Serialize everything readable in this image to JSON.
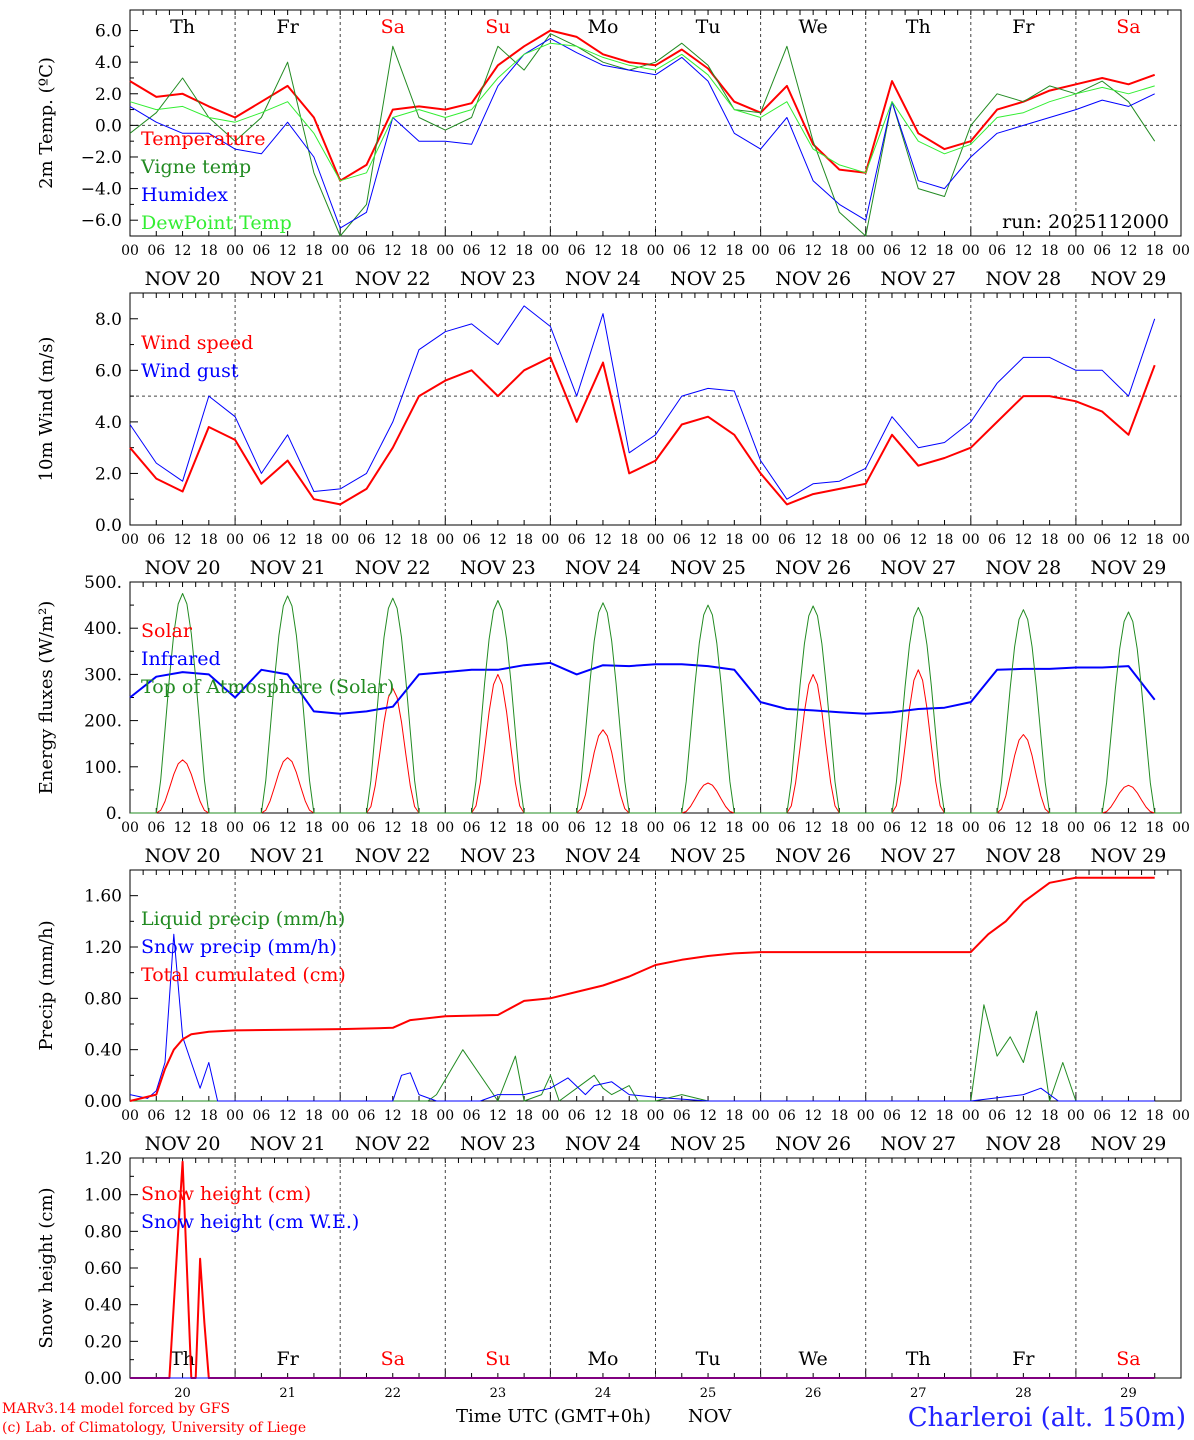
{
  "run_label": "run: 2025112000",
  "days": [
    {
      "abbr": "Th",
      "date_label": "NOV 20",
      "day": "20",
      "weekend": false
    },
    {
      "abbr": "Fr",
      "date_label": "NOV 21",
      "day": "21",
      "weekend": false
    },
    {
      "abbr": "Sa",
      "date_label": "NOV 22",
      "day": "22",
      "weekend": true
    },
    {
      "abbr": "Su",
      "date_label": "NOV 23",
      "day": "23",
      "weekend": true
    },
    {
      "abbr": "Mo",
      "date_label": "NOV 24",
      "day": "24",
      "weekend": false
    },
    {
      "abbr": "Tu",
      "date_label": "NOV 25",
      "day": "25",
      "weekend": false
    },
    {
      "abbr": "We",
      "date_label": "NOV 26",
      "day": "26",
      "weekend": false
    },
    {
      "abbr": "Th",
      "date_label": "NOV 27",
      "day": "27",
      "weekend": false
    },
    {
      "abbr": "Fr",
      "date_label": "NOV 28",
      "day": "28",
      "weekend": false
    },
    {
      "abbr": "Sa",
      "date_label": "NOV 29",
      "day": "29",
      "weekend": true
    }
  ],
  "hour_ticks": [
    "00",
    "06",
    "12",
    "18"
  ],
  "final_hour_tick": "00",
  "colors": {
    "weekday": "#000000",
    "weekend": "#ff0000"
  },
  "chart_data": [
    {
      "type": "line",
      "ylabel": "2m Temp. (ºC)",
      "ylim": [
        -7,
        7.3
      ],
      "yticks": [
        -6,
        -4,
        -2,
        0,
        2,
        4,
        6
      ],
      "ytick_labels": [
        "−6.0",
        "−4.0",
        "−2.0",
        "0.0",
        "2.0",
        "4.0",
        "6.0"
      ],
      "ref_line": 0,
      "x_unit": "hours since NOV 20 00 UTC",
      "series": [
        {
          "name": "Temperature",
          "color": "#ff0000",
          "width": 2,
          "x": [
            0,
            6,
            12,
            18,
            24,
            30,
            36,
            42,
            48,
            54,
            60,
            66,
            72,
            78,
            84,
            90,
            96,
            102,
            108,
            114,
            120,
            126,
            132,
            138,
            144,
            150,
            156,
            162,
            168,
            174,
            180,
            186,
            192,
            198,
            204,
            210,
            216,
            222,
            228,
            234
          ],
          "values": [
            2.8,
            1.8,
            2.0,
            1.2,
            0.5,
            1.5,
            2.5,
            0.5,
            -3.5,
            -2.5,
            1.0,
            1.2,
            1.0,
            1.4,
            3.8,
            5.0,
            6.0,
            5.6,
            4.5,
            4.0,
            3.8,
            4.8,
            3.6,
            1.5,
            0.8,
            2.5,
            -1.2,
            -2.8,
            -3.0,
            2.8,
            -0.5,
            -1.5,
            -1.0,
            1.0,
            1.5,
            2.2,
            2.6,
            3.0,
            2.6,
            3.2
          ]
        },
        {
          "name": "Vigne temp",
          "color": "#228b22",
          "width": 1,
          "x": [
            0,
            6,
            12,
            18,
            24,
            30,
            36,
            42,
            48,
            54,
            60,
            66,
            72,
            78,
            84,
            90,
            96,
            102,
            108,
            114,
            120,
            126,
            132,
            138,
            144,
            150,
            156,
            162,
            168,
            174,
            180,
            186,
            192,
            198,
            204,
            210,
            216,
            222,
            228,
            234
          ],
          "values": [
            -0.5,
            0.8,
            3.0,
            0.5,
            -1.0,
            0.5,
            4.0,
            -3.0,
            -7.0,
            -5.0,
            5.0,
            0.5,
            -0.3,
            0.5,
            5.0,
            3.5,
            5.8,
            5.0,
            4.0,
            3.5,
            4.0,
            5.2,
            3.8,
            1.0,
            0.8,
            5.0,
            -1.0,
            -5.5,
            -7.0,
            1.5,
            -4.0,
            -4.5,
            0.0,
            2.0,
            1.5,
            2.5,
            2.0,
            2.8,
            1.5,
            -1.0
          ]
        },
        {
          "name": "Humidex",
          "color": "#0000ff",
          "width": 1,
          "x": [
            0,
            6,
            12,
            18,
            24,
            30,
            36,
            42,
            48,
            54,
            60,
            66,
            72,
            78,
            84,
            90,
            96,
            102,
            108,
            114,
            120,
            126,
            132,
            138,
            144,
            150,
            156,
            162,
            168,
            174,
            180,
            186,
            192,
            198,
            204,
            210,
            216,
            222,
            228,
            234
          ],
          "values": [
            1.2,
            0.2,
            -0.5,
            -0.5,
            -1.5,
            -1.8,
            0.2,
            -2.0,
            -6.5,
            -5.5,
            0.5,
            -1.0,
            -1.0,
            -1.2,
            2.5,
            4.5,
            5.5,
            4.6,
            3.8,
            3.5,
            3.2,
            4.3,
            2.8,
            -0.5,
            -1.5,
            0.5,
            -3.5,
            -5.0,
            -6.0,
            1.5,
            -3.5,
            -4.0,
            -2.0,
            -0.5,
            0.0,
            0.5,
            1.0,
            1.6,
            1.2,
            2.0
          ]
        },
        {
          "name": "DewPoint Temp",
          "color": "#33ee33",
          "width": 1,
          "x": [
            0,
            6,
            12,
            18,
            24,
            30,
            36,
            42,
            48,
            54,
            60,
            66,
            72,
            78,
            84,
            90,
            96,
            102,
            108,
            114,
            120,
            126,
            132,
            138,
            144,
            150,
            156,
            162,
            168,
            174,
            180,
            186,
            192,
            198,
            204,
            210,
            216,
            222,
            228,
            234
          ],
          "values": [
            1.5,
            1.0,
            1.2,
            0.5,
            0.2,
            0.8,
            1.5,
            -0.5,
            -3.5,
            -3.0,
            0.5,
            1.0,
            0.5,
            1.0,
            3.0,
            4.5,
            5.2,
            5.0,
            4.3,
            3.8,
            3.5,
            4.5,
            3.2,
            1.0,
            0.5,
            1.5,
            -1.5,
            -2.5,
            -3.0,
            1.5,
            -1.0,
            -1.8,
            -1.2,
            0.5,
            0.8,
            1.5,
            2.0,
            2.4,
            2.0,
            2.5
          ]
        }
      ]
    },
    {
      "type": "line",
      "ylabel": "10m Wind (m/s)",
      "ylim": [
        0,
        9
      ],
      "yticks": [
        0,
        2,
        4,
        6,
        8
      ],
      "ytick_labels": [
        "0.0",
        "2.0",
        "4.0",
        "6.0",
        "8.0"
      ],
      "ref_line": 5,
      "x_unit": "hours since NOV 20 00 UTC",
      "series": [
        {
          "name": "Wind speed",
          "color": "#ff0000",
          "width": 2,
          "x": [
            0,
            6,
            12,
            18,
            24,
            30,
            36,
            42,
            48,
            54,
            60,
            66,
            72,
            78,
            84,
            90,
            96,
            102,
            108,
            114,
            120,
            126,
            132,
            138,
            144,
            150,
            156,
            162,
            168,
            174,
            180,
            186,
            192,
            198,
            204,
            210,
            216,
            222,
            228,
            234
          ],
          "values": [
            3.0,
            1.8,
            1.3,
            3.8,
            3.3,
            1.6,
            2.5,
            1.0,
            0.8,
            1.4,
            3.0,
            5.0,
            5.6,
            6.0,
            5.0,
            6.0,
            6.5,
            4.0,
            6.3,
            2.0,
            2.5,
            3.9,
            4.2,
            3.5,
            2.0,
            0.8,
            1.2,
            1.4,
            1.6,
            3.5,
            2.3,
            2.6,
            3.0,
            4.0,
            5.0,
            5.0,
            4.8,
            4.4,
            3.5,
            6.2
          ]
        },
        {
          "name": "Wind gust",
          "color": "#0000ff",
          "width": 1,
          "x": [
            0,
            6,
            12,
            18,
            24,
            30,
            36,
            42,
            48,
            54,
            60,
            66,
            72,
            78,
            84,
            90,
            96,
            102,
            108,
            114,
            120,
            126,
            132,
            138,
            144,
            150,
            156,
            162,
            168,
            174,
            180,
            186,
            192,
            198,
            204,
            210,
            216,
            222,
            228,
            234
          ],
          "values": [
            3.9,
            2.4,
            1.7,
            5.0,
            4.2,
            2.0,
            3.5,
            1.3,
            1.4,
            2.0,
            4.0,
            6.8,
            7.5,
            7.8,
            7.0,
            8.5,
            7.7,
            5.0,
            8.2,
            2.8,
            3.5,
            5.0,
            5.3,
            5.2,
            2.5,
            1.0,
            1.6,
            1.7,
            2.2,
            4.2,
            3.0,
            3.2,
            4.0,
            5.5,
            6.5,
            6.5,
            6.0,
            6.0,
            5.0,
            8.0
          ]
        }
      ]
    },
    {
      "type": "line",
      "ylabel": "Energy fluxes (W/m²)",
      "ylim": [
        0,
        500
      ],
      "yticks": [
        0,
        100,
        200,
        300,
        400,
        500
      ],
      "ytick_labels": [
        "0.",
        "100.",
        "200.",
        "300.",
        "400.",
        "500."
      ],
      "x_unit": "hours since NOV 20 00 UTC",
      "daylight": {
        "sunrise": 6,
        "sunset": 18,
        "solar_peaks": [
          115,
          120,
          270,
          300,
          180,
          65,
          300,
          310,
          170,
          60
        ],
        "toa_peaks": [
          475,
          470,
          465,
          460,
          455,
          450,
          448,
          445,
          440,
          435
        ]
      },
      "series": [
        {
          "name": "Solar",
          "color": "#ff0000",
          "width": 1
        },
        {
          "name": "Infrared",
          "color": "#0000ff",
          "width": 2,
          "x": [
            0,
            6,
            12,
            18,
            24,
            30,
            36,
            42,
            48,
            54,
            60,
            66,
            72,
            78,
            84,
            90,
            96,
            102,
            108,
            114,
            120,
            126,
            132,
            138,
            144,
            150,
            156,
            162,
            168,
            174,
            180,
            186,
            192,
            198,
            204,
            210,
            216,
            222,
            228,
            234
          ],
          "values": [
            250,
            295,
            305,
            300,
            250,
            310,
            300,
            220,
            215,
            220,
            230,
            300,
            305,
            310,
            310,
            320,
            325,
            300,
            320,
            318,
            322,
            322,
            318,
            310,
            240,
            225,
            222,
            218,
            215,
            218,
            225,
            228,
            240,
            310,
            312,
            312,
            315,
            315,
            318,
            245
          ]
        },
        {
          "name": "Top of Atmosphere (Solar)",
          "color": "#228b22",
          "width": 1
        }
      ]
    },
    {
      "type": "line",
      "ylabel": "Precip (mm/h)",
      "ylim": [
        0,
        1.8
      ],
      "yticks": [
        0,
        0.4,
        0.8,
        1.2,
        1.6
      ],
      "ytick_labels": [
        "0.00",
        "0.40",
        "0.80",
        "1.20",
        "1.60"
      ],
      "x_unit": "hours since NOV 20 00 UTC",
      "series": [
        {
          "name": "Liquid precip (mm/h)",
          "color": "#228b22",
          "width": 1,
          "x": [
            0,
            60,
            68,
            70,
            76,
            84,
            88,
            90,
            94,
            96,
            98,
            102,
            106,
            108,
            110,
            114,
            116,
            120,
            126,
            132,
            192,
            195,
            198,
            201,
            204,
            207,
            210,
            213,
            216,
            234
          ],
          "values": [
            0,
            0,
            0,
            0.05,
            0.4,
            0,
            0.35,
            0,
            0.05,
            0.2,
            0,
            0.1,
            0.2,
            0.1,
            0.05,
            0.12,
            0,
            0,
            0.05,
            0,
            0,
            0.75,
            0.35,
            0.5,
            0.3,
            0.7,
            0,
            0.3,
            0,
            0
          ]
        },
        {
          "name": "Snow precip (mm/h)",
          "color": "#0000ff",
          "width": 1,
          "x": [
            0,
            4,
            6,
            8,
            10,
            12,
            14,
            16,
            18,
            20,
            22,
            30,
            60,
            62,
            64,
            66,
            70,
            76,
            80,
            84,
            90,
            96,
            100,
            104,
            106,
            110,
            114,
            120,
            132,
            192,
            204,
            208,
            212,
            234
          ],
          "values": [
            0.05,
            0.02,
            0.08,
            0.3,
            1.3,
            0.5,
            0.3,
            0.1,
            0.3,
            0,
            0,
            0,
            0,
            0.2,
            0.22,
            0.05,
            0,
            0,
            0,
            0.05,
            0.05,
            0.1,
            0.18,
            0.05,
            0.12,
            0.15,
            0.05,
            0.03,
            0,
            0,
            0.05,
            0.1,
            0,
            0
          ]
        },
        {
          "name": "Total cumulated (cm)",
          "color": "#ff0000",
          "width": 2,
          "x": [
            0,
            6,
            8,
            10,
            12,
            14,
            16,
            18,
            24,
            48,
            60,
            64,
            72,
            84,
            90,
            96,
            102,
            108,
            114,
            120,
            126,
            132,
            138,
            144,
            168,
            192,
            196,
            200,
            204,
            210,
            216,
            234
          ],
          "values": [
            0,
            0.05,
            0.25,
            0.4,
            0.48,
            0.52,
            0.53,
            0.54,
            0.55,
            0.56,
            0.57,
            0.63,
            0.66,
            0.67,
            0.78,
            0.8,
            0.85,
            0.9,
            0.97,
            1.06,
            1.1,
            1.13,
            1.15,
            1.16,
            1.16,
            1.16,
            1.3,
            1.4,
            1.55,
            1.7,
            1.74,
            1.74
          ]
        }
      ]
    },
    {
      "type": "line",
      "ylabel": "Snow height (cm)",
      "ylim": [
        0,
        1.2
      ],
      "yticks": [
        0,
        0.2,
        0.4,
        0.6,
        0.8,
        1.0,
        1.2
      ],
      "ytick_labels": [
        "0.00",
        "0.20",
        "0.40",
        "0.60",
        "0.80",
        "1.00",
        "1.20"
      ],
      "x_unit": "hours since NOV 20 00 UTC",
      "series": [
        {
          "name": "Snow height (cm)",
          "color": "#ff0000",
          "width": 2,
          "x": [
            0,
            9,
            11,
            12,
            13,
            14,
            15,
            16,
            17,
            18,
            234
          ],
          "values": [
            0,
            0,
            0.8,
            1.18,
            0.6,
            0.0,
            0.0,
            0.65,
            0.3,
            0,
            0
          ]
        },
        {
          "name": "Snow height (cm W.E.)",
          "color": "#0000ff",
          "width": 1,
          "x": [
            0,
            234
          ],
          "values": [
            0,
            0
          ]
        }
      ]
    }
  ],
  "footer": {
    "axis_title": "Time UTC (GMT+0h)",
    "month": "NOV",
    "model_line": "MARv3.14 model forced by GFS",
    "credit_line": "(c) Lab. of Climatology, University of Liege",
    "station": "Charleroi (alt. 150m)"
  }
}
